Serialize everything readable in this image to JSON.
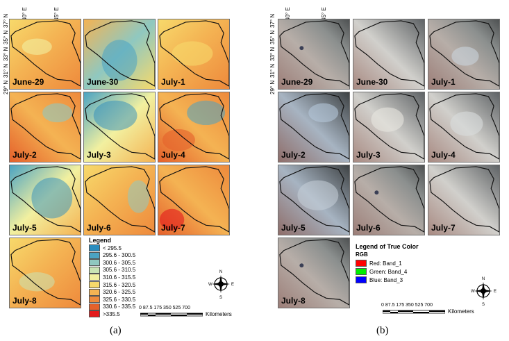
{
  "panel_a": {
    "lon_labels": [
      "40° E",
      "45° E"
    ],
    "lat_labels": [
      "29° N",
      "31° N",
      "33° N",
      "35° N",
      "37° N"
    ],
    "tiles": [
      "June-29",
      "June-30",
      "July-1",
      "July-2",
      "July-3",
      "July-4",
      "July-5",
      "July-6",
      "July-7",
      "July-8"
    ],
    "legend": {
      "title": "Legend",
      "items": [
        {
          "label": "< 295.5",
          "color": "#2b8cbe"
        },
        {
          "label": "295.6 - 300.5",
          "color": "#4ba3c3"
        },
        {
          "label": "300.6 - 305.5",
          "color": "#8fc8c0"
        },
        {
          "label": "305.6 - 310.5",
          "color": "#c9e4b4"
        },
        {
          "label": "310.6 - 315.5",
          "color": "#f2f0a0"
        },
        {
          "label": "315.6 - 320.5",
          "color": "#f7d96b"
        },
        {
          "label": "320.6 - 325.5",
          "color": "#f4b353"
        },
        {
          "label": "325.6 - 330.5",
          "color": "#ee8a3c"
        },
        {
          "label": "330.6 - 335.5",
          "color": "#e5612b"
        },
        {
          "label": ">335.5",
          "color": "#e31a1c"
        }
      ]
    },
    "compass": {
      "n": "N",
      "s": "S",
      "e": "E",
      "w": "W"
    },
    "scale": {
      "ticks": "0 87.5 175   350    525    700",
      "unit": "Kilometers"
    },
    "caption": "(a)"
  },
  "panel_b": {
    "lon_labels": [
      "40° E",
      "45° E"
    ],
    "lat_labels": [
      "29° N",
      "31° N",
      "33° N",
      "35° N",
      "37° N"
    ],
    "tiles": [
      "June-29",
      "June-30",
      "July-1",
      "July-2",
      "July-3",
      "July-4",
      "July-5",
      "July-6",
      "July-7",
      "July-8"
    ],
    "legend": {
      "title": "Legend of True Color",
      "subtitle": "RGB",
      "items": [
        {
          "label": "Red:   Band_1",
          "color": "#ff0000"
        },
        {
          "label": "Green: Band_4",
          "color": "#00ee00"
        },
        {
          "label": "Blue:  Band_3",
          "color": "#0000ff"
        }
      ]
    },
    "compass": {
      "n": "N",
      "s": "S",
      "e": "E",
      "w": "W"
    },
    "scale": {
      "ticks": "0 87.5 175   350    525    700",
      "unit": "Kilometers"
    },
    "caption": "(b)"
  }
}
